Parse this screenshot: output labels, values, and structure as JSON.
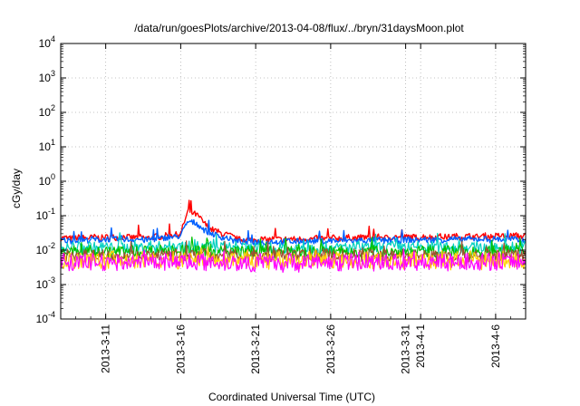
{
  "chart_data": {
    "type": "line",
    "title": "/data/run/goesPlots/archive/2013-04-08/flux/../bryn/31daysMoon.plot",
    "xlabel": "Coordinated Universal Time (UTC)",
    "ylabel": "cGy/day",
    "yscale": "log",
    "ylim": [
      0.0001,
      10000
    ],
    "y_ticks": [
      {
        "base": "10",
        "exp": "-4",
        "value": 0.0001
      },
      {
        "base": "10",
        "exp": "-3",
        "value": 0.001
      },
      {
        "base": "10",
        "exp": "-2",
        "value": 0.01
      },
      {
        "base": "10",
        "exp": "-1",
        "value": 0.1
      },
      {
        "base": "10",
        "exp": "0",
        "value": 1
      },
      {
        "base": "10",
        "exp": "1",
        "value": 10
      },
      {
        "base": "10",
        "exp": "2",
        "value": 100
      },
      {
        "base": "10",
        "exp": "3",
        "value": 1000
      },
      {
        "base": "10",
        "exp": "4",
        "value": 10000
      }
    ],
    "xlim": [
      "2013-03-08",
      "2013-04-08"
    ],
    "x_ticks": [
      {
        "label": "2013-3-11",
        "date": "2013-03-11"
      },
      {
        "label": "2013-3-16",
        "date": "2013-03-16"
      },
      {
        "label": "2013-3-21",
        "date": "2013-03-21"
      },
      {
        "label": "2013-3-26",
        "date": "2013-03-26"
      },
      {
        "label": "2013-3-31",
        "date": "2013-03-31"
      },
      {
        "label": "2013-4-1",
        "date": "2013-04-01"
      },
      {
        "label": "2013-4-6",
        "date": "2013-04-06"
      }
    ],
    "grid": true,
    "series": [
      {
        "color": "#ff0000",
        "x": [
          "2013-03-08",
          "2013-03-10",
          "2013-03-12",
          "2013-03-14",
          "2013-03-16",
          "2013-03-16T12:00",
          "2013-03-17",
          "2013-03-18",
          "2013-03-20",
          "2013-03-24",
          "2013-03-28",
          "2013-04-01",
          "2013-04-05",
          "2013-04-08"
        ],
        "y": [
          0.022,
          0.023,
          0.024,
          0.023,
          0.03,
          0.14,
          0.11,
          0.04,
          0.02,
          0.021,
          0.023,
          0.024,
          0.025,
          0.026
        ]
      },
      {
        "color": "#0060ff",
        "x": [
          "2013-03-08",
          "2013-03-10",
          "2013-03-12",
          "2013-03-14",
          "2013-03-16",
          "2013-03-16T12:00",
          "2013-03-17",
          "2013-03-18",
          "2013-03-20",
          "2013-03-24",
          "2013-03-28",
          "2013-04-01",
          "2013-04-05",
          "2013-04-08"
        ],
        "y": [
          0.019,
          0.02,
          0.021,
          0.02,
          0.026,
          0.07,
          0.06,
          0.03,
          0.017,
          0.018,
          0.019,
          0.02,
          0.021,
          0.02
        ]
      },
      {
        "color": "#00d0c0",
        "x": [
          "2013-03-08",
          "2013-03-12",
          "2013-03-16",
          "2013-03-18",
          "2013-03-22",
          "2013-03-28",
          "2013-04-03",
          "2013-04-08"
        ],
        "y": [
          0.012,
          0.012,
          0.013,
          0.012,
          0.011,
          0.012,
          0.012,
          0.012
        ]
      },
      {
        "color": "#00c000",
        "x": [
          "2013-03-08",
          "2013-03-12",
          "2013-03-16",
          "2013-03-20",
          "2013-03-26",
          "2013-04-01",
          "2013-04-08"
        ],
        "y": [
          0.009,
          0.009,
          0.01,
          0.009,
          0.009,
          0.009,
          0.009
        ]
      },
      {
        "color": "#a05030",
        "x": [
          "2013-03-08",
          "2013-03-12",
          "2013-03-16",
          "2013-03-20",
          "2013-03-26",
          "2013-04-01",
          "2013-04-08"
        ],
        "y": [
          0.007,
          0.007,
          0.007,
          0.007,
          0.007,
          0.007,
          0.007
        ]
      },
      {
        "color": "#ffd000",
        "x": [
          "2013-03-08",
          "2013-03-12",
          "2013-03-16",
          "2013-03-20",
          "2013-03-26",
          "2013-04-01",
          "2013-04-08"
        ],
        "y": [
          0.005,
          0.005,
          0.005,
          0.005,
          0.005,
          0.005,
          0.005
        ]
      },
      {
        "color": "#ff00ff",
        "x": [
          "2013-03-08",
          "2013-03-12",
          "2013-03-16",
          "2013-03-20",
          "2013-03-26",
          "2013-04-01",
          "2013-04-08"
        ],
        "y": [
          0.0045,
          0.0045,
          0.0048,
          0.0043,
          0.0044,
          0.0045,
          0.0046
        ]
      }
    ]
  }
}
